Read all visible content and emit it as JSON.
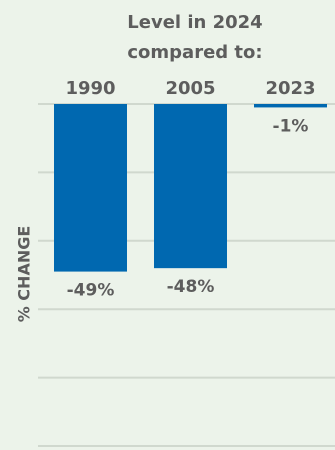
{
  "chart_data": {
    "type": "bar",
    "title_lines": [
      "Level in 2024",
      "compared to:"
    ],
    "categories": [
      "1990",
      "2005",
      "2023"
    ],
    "values": [
      -49,
      -48,
      -1
    ],
    "value_labels": [
      "-49%",
      "-48%",
      "-1%"
    ],
    "ylabel": "% CHANGE",
    "ylim": [
      -100,
      0
    ],
    "grid": true,
    "colors": {
      "bar": "#0068b0",
      "text": "#5d5d5d",
      "grid": "#d0d8ce"
    }
  }
}
